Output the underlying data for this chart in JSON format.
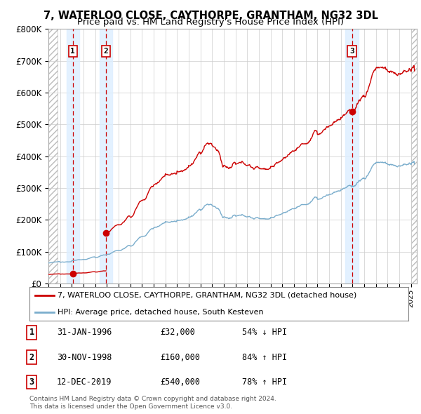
{
  "title": "7, WATERLOO CLOSE, CAYTHORPE, GRANTHAM, NG32 3DL",
  "subtitle": "Price paid vs. HM Land Registry's House Price Index (HPI)",
  "ylim": [
    0,
    800000
  ],
  "xlim_start": 1994.0,
  "xlim_end": 2025.5,
  "ytick_labels": [
    "£0",
    "£100K",
    "£200K",
    "£300K",
    "£400K",
    "£500K",
    "£600K",
    "£700K",
    "£800K"
  ],
  "ytick_values": [
    0,
    100000,
    200000,
    300000,
    400000,
    500000,
    600000,
    700000,
    800000
  ],
  "sale_dates": [
    1996.08,
    1998.92,
    2019.95
  ],
  "sale_prices": [
    32000,
    160000,
    540000
  ],
  "sale_labels": [
    "1",
    "2",
    "3"
  ],
  "red_line_color": "#cc0000",
  "blue_line_color": "#7aadcc",
  "dot_color": "#cc0000",
  "shade_color": "#ddeeff",
  "dashed_line_color": "#cc0000",
  "grid_color": "#cccccc",
  "background_color": "#ffffff",
  "legend_entries": [
    "7, WATERLOO CLOSE, CAYTHORPE, GRANTHAM, NG32 3DL (detached house)",
    "HPI: Average price, detached house, South Kesteven"
  ],
  "table_rows": [
    {
      "num": "1",
      "date": "31-JAN-1996",
      "price": "£32,000",
      "change": "54% ↓ HPI"
    },
    {
      "num": "2",
      "date": "30-NOV-1998",
      "price": "£160,000",
      "change": "84% ↑ HPI"
    },
    {
      "num": "3",
      "date": "12-DEC-2019",
      "price": "£540,000",
      "change": "78% ↑ HPI"
    }
  ],
  "footer": "Contains HM Land Registry data © Crown copyright and database right 2024.\nThis data is licensed under the Open Government Licence v3.0."
}
